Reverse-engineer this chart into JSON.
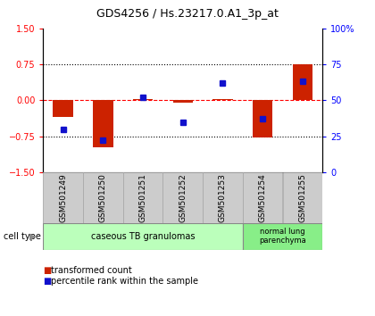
{
  "title": "GDS4256 / Hs.23217.0.A1_3p_at",
  "samples": [
    "GSM501249",
    "GSM501250",
    "GSM501251",
    "GSM501252",
    "GSM501253",
    "GSM501254",
    "GSM501255"
  ],
  "transformed_count": [
    -0.35,
    -0.98,
    0.03,
    -0.04,
    0.03,
    -0.78,
    0.75
  ],
  "percentile_rank": [
    30,
    22,
    52,
    35,
    62,
    37,
    63
  ],
  "ylim_left": [
    -1.5,
    1.5
  ],
  "ylim_right": [
    0,
    100
  ],
  "yticks_left": [
    -1.5,
    -0.75,
    0,
    0.75,
    1.5
  ],
  "yticks_right": [
    0,
    25,
    50,
    75,
    100
  ],
  "ytick_labels_right": [
    "0",
    "25",
    "50",
    "75",
    "100%"
  ],
  "bar_color": "#cc2200",
  "dot_color": "#1111cc",
  "hline_dotted": [
    -0.75,
    0.75
  ],
  "hline_dashed": 0.0,
  "cell_type_groups": [
    {
      "label": "caseous TB granulomas",
      "n_samples": 5,
      "color": "#bbffbb"
    },
    {
      "label": "normal lung\nparenchyma",
      "n_samples": 2,
      "color": "#88ee88"
    }
  ],
  "legend_bar_label": "transformed count",
  "legend_dot_label": "percentile rank within the sample",
  "cell_type_label": "cell type",
  "bg_color": "#ffffff",
  "tick_box_color": "#cccccc",
  "bar_width": 0.5,
  "left_axis_color": "red",
  "right_axis_color": "blue"
}
